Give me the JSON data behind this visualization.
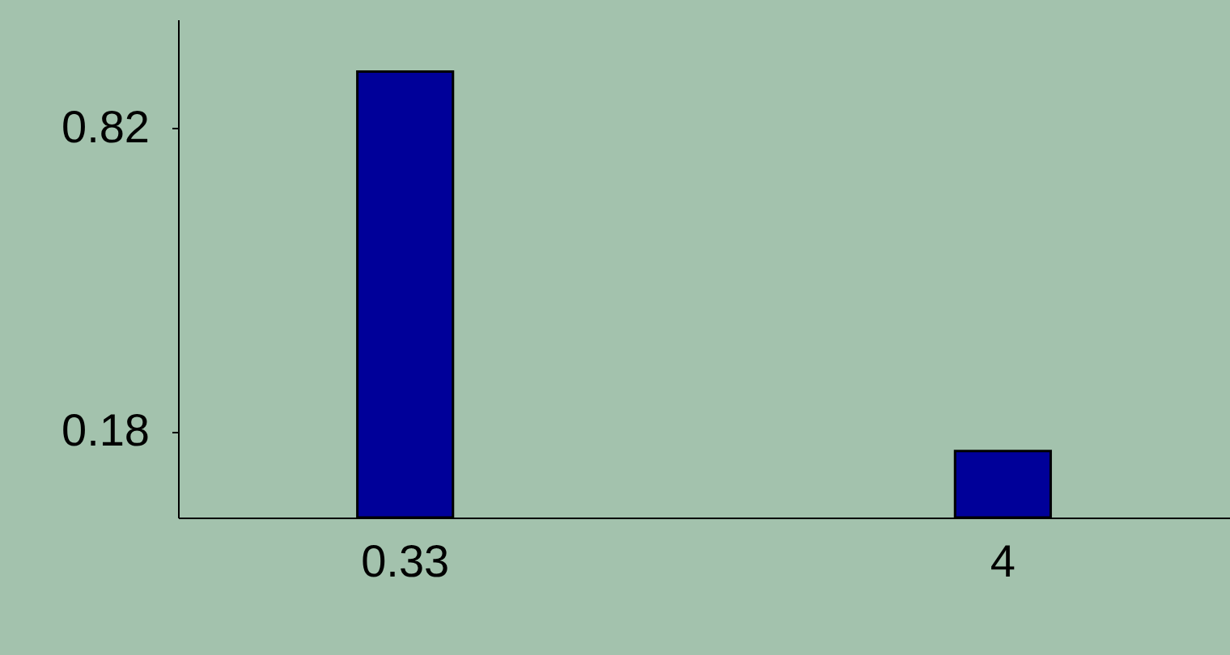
{
  "chart_data": {
    "type": "bar",
    "categories": [
      "0.33",
      "4"
    ],
    "series": [
      {
        "color": "#000099",
        "values": [
          0.94,
          0.14
        ]
      }
    ],
    "ylim": [
      0,
      1.05
    ],
    "yticks": [
      0.18,
      0.82
    ],
    "grid": false
  }
}
